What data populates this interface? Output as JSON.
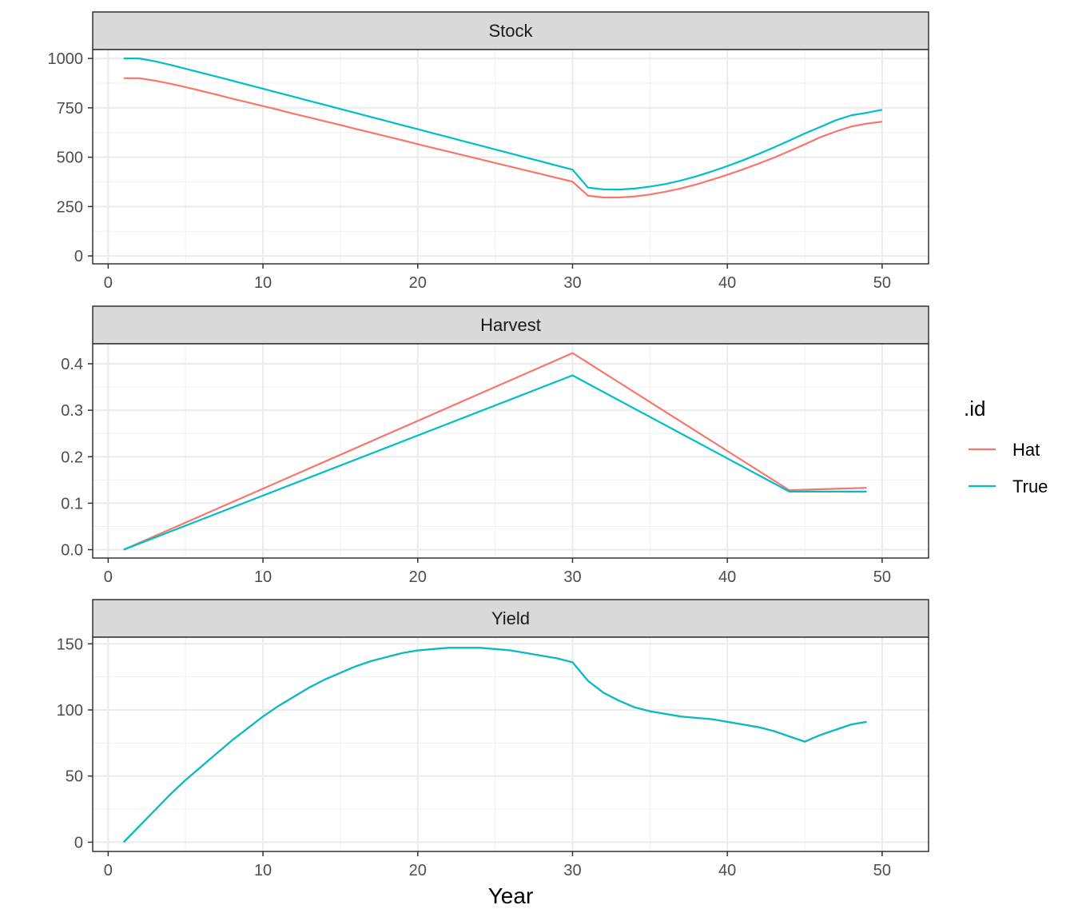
{
  "chart_data": {
    "type": "line",
    "xlabel": "Year",
    "xlim": [
      -1,
      53
    ],
    "x_ticks": [
      0,
      10,
      20,
      30,
      40,
      50
    ],
    "grid": true,
    "legend": {
      "title": ".id",
      "position": "right",
      "entries": [
        {
          "name": "Hat",
          "color": "#F8766D"
        },
        {
          "name": "True",
          "color": "#00BFC4"
        }
      ]
    },
    "panels": [
      {
        "strip": "Stock",
        "ylim": [
          -40,
          1045
        ],
        "y_ticks": [
          0,
          250,
          500,
          750,
          1000
        ],
        "y_minor": [
          125,
          375,
          625,
          875
        ],
        "series": [
          {
            "name": "Hat",
            "color": "#F8766D",
            "x": [
              1,
              2,
              3,
              4,
              5,
              6,
              7,
              8,
              9,
              10,
              11,
              12,
              13,
              14,
              15,
              16,
              17,
              18,
              19,
              20,
              21,
              22,
              23,
              24,
              25,
              26,
              27,
              28,
              29,
              30,
              31,
              32,
              33,
              34,
              35,
              36,
              37,
              38,
              39,
              40,
              41,
              42,
              43,
              44,
              45,
              46,
              47,
              48,
              49,
              50
            ],
            "y": [
              900,
              900,
              888,
              872,
              855,
              836,
              817,
              797,
              778,
              759,
              740,
              720,
              701,
              682,
              663,
              643,
              624,
              605,
              586,
              566,
              547,
              528,
              509,
              490,
              471,
              452,
              433,
              414,
              395,
              376,
              305,
              296,
              296,
              301,
              311,
              325,
              342,
              362,
              386,
              411,
              438,
              467,
              497,
              531,
              565,
              601,
              630,
              655,
              670,
              680
            ]
          },
          {
            "name": "True",
            "color": "#00BFC4",
            "x": [
              1,
              2,
              3,
              4,
              5,
              6,
              7,
              8,
              9,
              10,
              11,
              12,
              13,
              14,
              15,
              16,
              17,
              18,
              19,
              20,
              21,
              22,
              23,
              24,
              25,
              26,
              27,
              28,
              29,
              30,
              31,
              32,
              33,
              34,
              35,
              36,
              37,
              38,
              39,
              40,
              41,
              42,
              43,
              44,
              45,
              46,
              47,
              48,
              49,
              50
            ],
            "y": [
              1000,
              1000,
              986,
              968,
              948,
              928,
              908,
              888,
              867,
              847,
              826,
              806,
              785,
              765,
              744,
              724,
              703,
              683,
              662,
              642,
              621,
              601,
              580,
              560,
              539,
              519,
              498,
              478,
              457,
              437,
              346,
              337,
              336,
              341,
              351,
              364,
              382,
              403,
              428,
              455,
              484,
              516,
              549,
              584,
              620,
              653,
              687,
              712,
              725,
              740
            ]
          }
        ]
      },
      {
        "strip": "Harvest",
        "ylim": [
          -0.018,
          0.443
        ],
        "y_ticks": [
          0.0,
          0.1,
          0.2,
          0.3,
          0.4
        ],
        "y_tick_labels": [
          "0.0",
          "0.1",
          "0.2",
          "0.3",
          "0.4"
        ],
        "y_minor": [
          0.05,
          0.15,
          0.25,
          0.35
        ],
        "series": [
          {
            "name": "Hat",
            "color": "#F8766D",
            "x": [
              1,
              30,
              31,
              44,
              49
            ],
            "y": [
              0.0,
              0.423,
              0.402,
              0.128,
              0.133
            ]
          },
          {
            "name": "True",
            "color": "#00BFC4",
            "x": [
              1,
              30,
              31,
              44,
              49
            ],
            "y": [
              0.0,
              0.375,
              0.357,
              0.125,
              0.125
            ]
          }
        ]
      },
      {
        "strip": "Yield",
        "ylim": [
          -7,
          155
        ],
        "y_ticks": [
          0,
          50,
          100,
          150
        ],
        "y_minor": [
          25,
          75,
          125
        ],
        "series": [
          {
            "name": "Hat",
            "color": "#F8766D",
            "x": [
              1,
              2,
              3,
              4,
              5,
              6,
              7,
              8,
              9,
              10,
              11,
              12,
              13,
              14,
              15,
              16,
              17,
              18,
              19,
              20,
              21,
              22,
              23,
              24,
              25,
              26,
              27,
              28,
              29,
              30,
              31,
              32,
              33,
              34,
              35,
              36,
              37,
              38,
              39,
              40,
              41,
              42,
              43,
              44,
              45,
              46,
              47,
              48,
              49
            ],
            "y": [
              0,
              12,
              24,
              36,
              47,
              57,
              67,
              77,
              86,
              95,
              103,
              110,
              117,
              123,
              128,
              133,
              137,
              140,
              143,
              145,
              146,
              147,
              147,
              147,
              146,
              145,
              143,
              141,
              139,
              136,
              122,
              113,
              107,
              102,
              99,
              97,
              95,
              94,
              93,
              91,
              89,
              87,
              84,
              80,
              76,
              81,
              85,
              89,
              91
            ]
          },
          {
            "name": "True",
            "color": "#00BFC4",
            "x": [
              1,
              2,
              3,
              4,
              5,
              6,
              7,
              8,
              9,
              10,
              11,
              12,
              13,
              14,
              15,
              16,
              17,
              18,
              19,
              20,
              21,
              22,
              23,
              24,
              25,
              26,
              27,
              28,
              29,
              30,
              31,
              32,
              33,
              34,
              35,
              36,
              37,
              38,
              39,
              40,
              41,
              42,
              43,
              44,
              45,
              46,
              47,
              48,
              49
            ],
            "y": [
              0,
              12,
              24,
              36,
              47,
              57,
              67,
              77,
              86,
              95,
              103,
              110,
              117,
              123,
              128,
              133,
              137,
              140,
              143,
              145,
              146,
              147,
              147,
              147,
              146,
              145,
              143,
              141,
              139,
              136,
              122,
              113,
              107,
              102,
              99,
              97,
              95,
              94,
              93,
              91,
              89,
              87,
              84,
              80,
              76,
              81,
              85,
              89,
              91
            ]
          }
        ]
      }
    ]
  }
}
